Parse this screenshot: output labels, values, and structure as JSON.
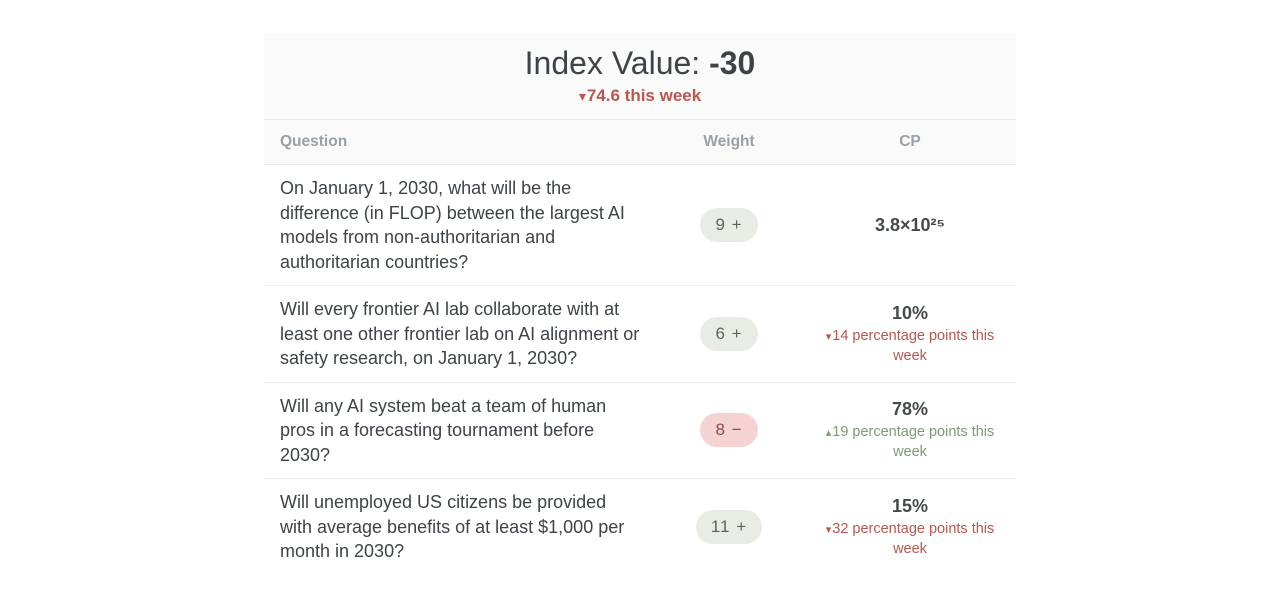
{
  "colors": {
    "negative_red": "#b9564f",
    "positive_green": "#7d9b72",
    "pill_positive_bg": "#e9ece5",
    "pill_positive_text": "#5d6556",
    "pill_negative_bg": "#f4d3d2",
    "pill_negative_text": "#8e4c48",
    "card_header_bg": "#fafafa",
    "dark_text": "#3d4349",
    "column_header_gray": "#9aa0a8"
  },
  "index_header": {
    "title_label": "Index Value: ",
    "title_value": "-30",
    "change_arrow": "▾",
    "change_text": "74.6 this week"
  },
  "table": {
    "columns": {
      "question": "Question",
      "weight": "Weight",
      "cp": "CP"
    },
    "rows": [
      {
        "question": "On January 1, 2030, what will be the difference (in FLOP) between the largest AI models from non-authoritarian and authoritarian countries?",
        "weight": "9 +",
        "cp_value": "3.8×10²⁵"
      },
      {
        "question": "Will every frontier AI lab collaborate with at least one other frontier lab on AI alignment or safety research, on January 1, 2030?",
        "weight": "6 +",
        "cp_value": "10%",
        "cp_change_arrow": "▾",
        "cp_change_text": "14 percentage points this week"
      },
      {
        "question": "Will any AI system beat a team of human pros in a forecasting tournament before 2030?",
        "weight": "8 −",
        "cp_value": "78%",
        "cp_change_arrow": "▴",
        "cp_change_text": "19 percentage points this week"
      },
      {
        "question": "Will unemployed US citizens be provided with average benefits of at least $1,000 per month in 2030?",
        "weight": "11 +",
        "cp_value": "15%",
        "cp_change_arrow": "▾",
        "cp_change_text": "32 percentage points this week"
      }
    ]
  }
}
